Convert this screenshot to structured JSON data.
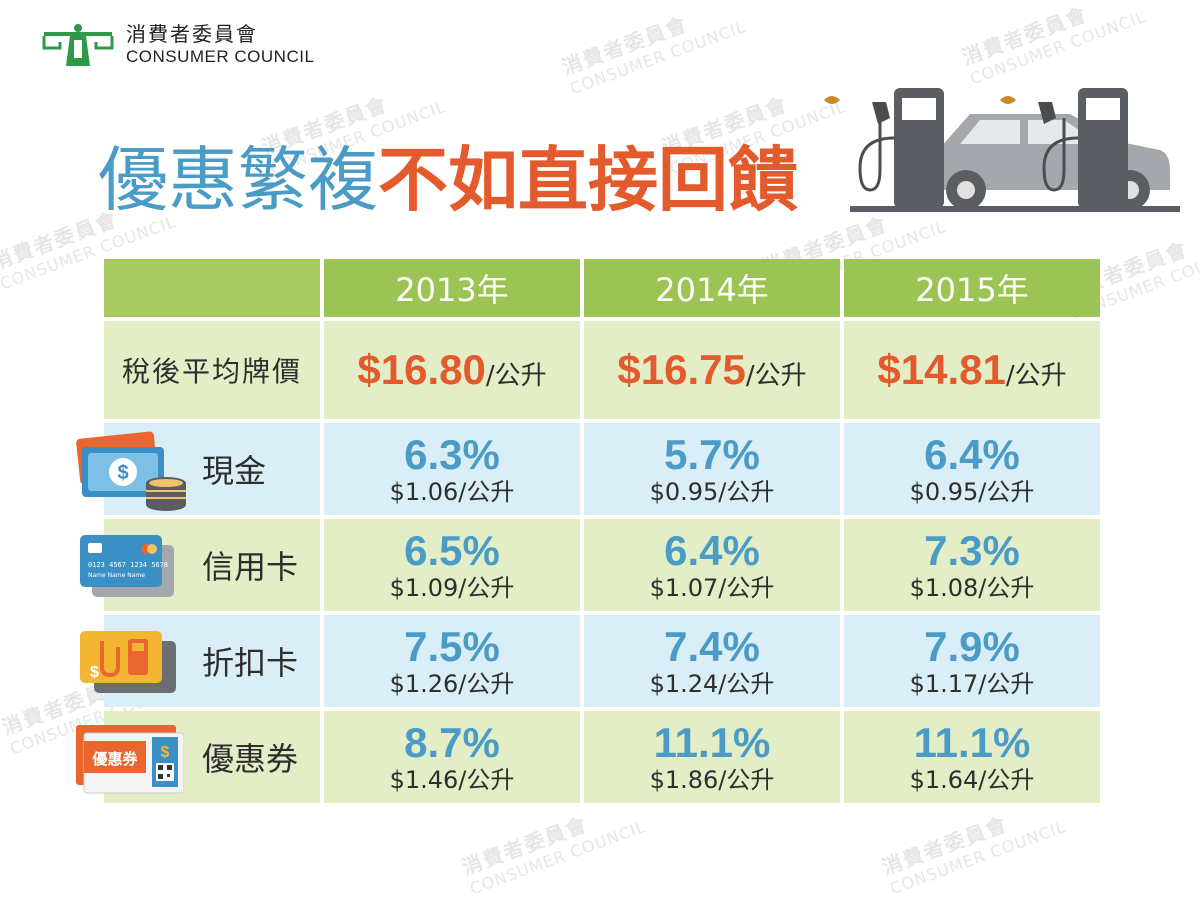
{
  "logo": {
    "zh": "消費者委員會",
    "en": "CONSUMER COUNCIL"
  },
  "watermark": {
    "zh": "消費者委員會",
    "en": "CONSUMER COUNCIL"
  },
  "title": {
    "part1": "優惠繁複",
    "part2": "不如直接回饋"
  },
  "table": {
    "years": [
      "2013年",
      "2014年",
      "2015年"
    ],
    "price_row": {
      "label": "稅後平均牌價",
      "values": [
        {
          "amount": "$16.80",
          "unit": "/公升"
        },
        {
          "amount": "$16.75",
          "unit": "/公升"
        },
        {
          "amount": "$14.81",
          "unit": "/公升"
        }
      ]
    },
    "rows": [
      {
        "label": "現金",
        "icon": "cash-coins-icon",
        "cells": [
          {
            "pct": "6.3%",
            "amt": "$1.06/公升"
          },
          {
            "pct": "5.7%",
            "amt": "$0.95/公升"
          },
          {
            "pct": "6.4%",
            "amt": "$0.95/公升"
          }
        ]
      },
      {
        "label": "信用卡",
        "icon": "credit-card-icon",
        "card_number": "0123 4567 1234 5678",
        "card_name": "Name Name Name",
        "cells": [
          {
            "pct": "6.5%",
            "amt": "$1.09/公升"
          },
          {
            "pct": "6.4%",
            "amt": "$1.07/公升"
          },
          {
            "pct": "7.3%",
            "amt": "$1.08/公升"
          }
        ]
      },
      {
        "label": "折扣卡",
        "icon": "discount-card-icon",
        "cells": [
          {
            "pct": "7.5%",
            "amt": "$1.26/公升"
          },
          {
            "pct": "7.4%",
            "amt": "$1.24/公升"
          },
          {
            "pct": "7.9%",
            "amt": "$1.17/公升"
          }
        ]
      },
      {
        "label": "優惠券",
        "icon": "coupon-icon",
        "coupon_text": "優惠券",
        "cells": [
          {
            "pct": "8.7%",
            "amt": "$1.46/公升"
          },
          {
            "pct": "11.1%",
            "amt": "$1.86/公升"
          },
          {
            "pct": "11.1%",
            "amt": "$1.64/公升"
          }
        ]
      }
    ]
  },
  "colors": {
    "header_green": "#9cc454",
    "row_green": "#e3eec7",
    "row_blue": "#d9eef6",
    "accent_orange": "#e35a2d",
    "accent_blue": "#4a9cc7"
  }
}
